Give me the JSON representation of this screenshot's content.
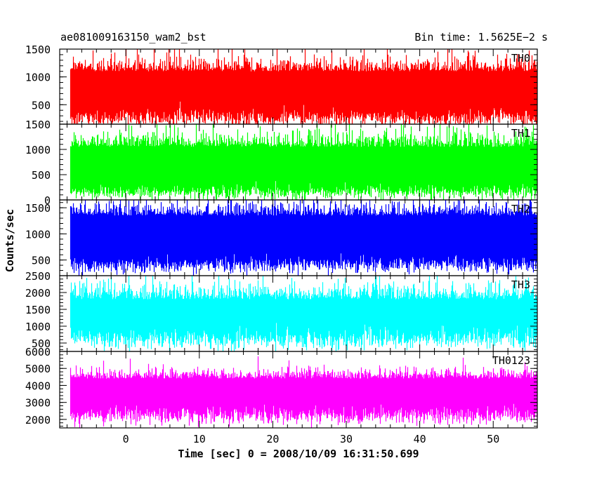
{
  "header": {
    "left_title": "ae081009163150_wam2_bst",
    "right_title": "Bin time: 1.5625E−2 s"
  },
  "chart_data": {
    "type": "line",
    "xlabel": "Time [sec] 0 = 2008/10/09 16:31:50.699",
    "ylabel": "Counts/sec",
    "xlim": [
      -9,
      56
    ],
    "x_ticks": [
      0,
      10,
      20,
      30,
      40,
      50
    ],
    "x_tick_labels": [
      "0",
      "10",
      "20",
      "30",
      "40",
      "50"
    ],
    "data_x_range": [
      -7.5,
      56
    ],
    "bin_time": 0.015625,
    "panels": [
      {
        "name": "TH0",
        "color": "#ff0000",
        "ylim": [
          150,
          1500
        ],
        "ticks": [
          500,
          1000,
          1500
        ],
        "tick_labels": [
          "500",
          "1000",
          "1500"
        ],
        "series_stats": {
          "low": 250,
          "low_sd": 80,
          "high": 1100,
          "high_sd": 160,
          "mean": 650
        }
      },
      {
        "name": "TH1",
        "color": "#00ff00",
        "ylim": [
          0,
          1500
        ],
        "ticks": [
          0,
          500,
          1000,
          1500
        ],
        "tick_labels": [
          "0",
          "500",
          "1000",
          "1500"
        ],
        "series_stats": {
          "low": 140,
          "low_sd": 70,
          "high": 1050,
          "high_sd": 170,
          "mean": 550
        }
      },
      {
        "name": "TH2",
        "color": "#0000ff",
        "ylim": [
          200,
          1650
        ],
        "ticks": [
          500,
          1000,
          1500
        ],
        "tick_labels": [
          "500",
          "1000",
          "1500"
        ],
        "series_stats": {
          "low": 400,
          "low_sd": 80,
          "high": 1350,
          "high_sd": 150,
          "mean": 850
        }
      },
      {
        "name": "TH3",
        "color": "#00ffff",
        "ylim": [
          250,
          2500
        ],
        "ticks": [
          500,
          1000,
          1500,
          2000,
          2500
        ],
        "tick_labels": [
          "500",
          "1000",
          "1500",
          "2000",
          "2500"
        ],
        "series_stats": {
          "low": 600,
          "low_sd": 150,
          "high": 1800,
          "high_sd": 280,
          "mean": 1150
        }
      },
      {
        "name": "TH0123",
        "color": "#ff00ff",
        "ylim": [
          1500,
          6000
        ],
        "ticks": [
          2000,
          3000,
          4000,
          5000,
          6000
        ],
        "tick_labels": [
          "2000",
          "3000",
          "4000",
          "5000",
          "6000"
        ],
        "series_stats": {
          "low": 2200,
          "low_sd": 250,
          "high": 4400,
          "high_sd": 350,
          "mean": 3300
        }
      }
    ]
  }
}
